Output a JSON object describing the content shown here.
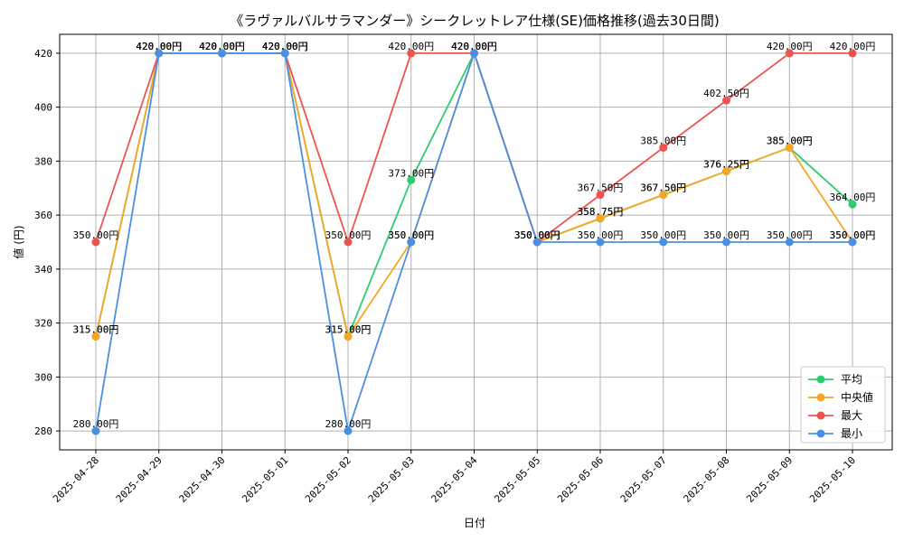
{
  "chart_data": {
    "type": "line",
    "title": "《ラヴァルバルサラマンダー》シークレットレア仕様(SE)価格推移(過去30日間)",
    "xlabel": "日付",
    "ylabel": "値 (円)",
    "categories": [
      "2025-04-28",
      "2025-04-29",
      "2025-04-30",
      "2025-05-01",
      "2025-05-02",
      "2025-05-03",
      "2025-05-04",
      "2025-05-05",
      "2025-05-06",
      "2025-05-07",
      "2025-05-08",
      "2025-05-09",
      "2025-05-10"
    ],
    "ylim": [
      273,
      427
    ],
    "yticks": [
      280,
      300,
      320,
      340,
      360,
      380,
      400,
      420
    ],
    "grid": true,
    "legend_position": "bottom-right",
    "label_suffix": "円",
    "series": [
      {
        "name": "平均",
        "color": "#2ecc71",
        "values": [
          315,
          420,
          420,
          420,
          315,
          373,
          420,
          350,
          358.75,
          367.5,
          376.25,
          385,
          364
        ]
      },
      {
        "name": "中央値",
        "color": "#f5a623",
        "values": [
          315,
          420,
          420,
          420,
          315,
          350,
          420,
          350,
          358.75,
          367.5,
          376.25,
          385,
          350
        ]
      },
      {
        "name": "最大",
        "color": "#ef5350",
        "values": [
          350,
          420,
          420,
          420,
          350,
          420,
          420,
          350,
          367.5,
          385,
          402.5,
          420,
          420
        ]
      },
      {
        "name": "最小",
        "color": "#4a90e2",
        "values": [
          280,
          420,
          420,
          420,
          280,
          350,
          420,
          350,
          350,
          350,
          350,
          350,
          350
        ]
      }
    ]
  }
}
